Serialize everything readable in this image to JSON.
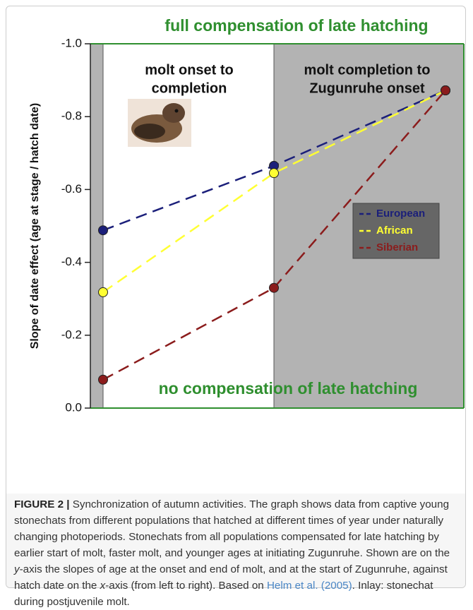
{
  "chart_data": {
    "type": "line",
    "ylabel": "Slope of date effect (age at stage / hatch date)",
    "top_note": "full compensation of late hatching",
    "bottom_note": "no compensation of late hatching",
    "regions": [
      [
        "molt onset to",
        "completion"
      ],
      [
        "molt completion to",
        "Zugunruhe onset"
      ]
    ],
    "categories": [
      null,
      null,
      null
    ],
    "series": [
      {
        "name": "European",
        "color": "#1b1f7a",
        "values": [
          -0.488,
          -0.665,
          -0.872
        ]
      },
      {
        "name": "African",
        "color": "#ffff33",
        "values": [
          -0.318,
          -0.645,
          -0.872
        ]
      },
      {
        "name": "Siberian",
        "color": "#8b1c1c",
        "values": [
          -0.078,
          -0.33,
          -0.872
        ]
      }
    ],
    "ylim": [
      0,
      -1.0
    ],
    "yticks": [
      {
        "value": 0,
        "label": "0.0"
      },
      -0.2,
      -0.4,
      -0.6,
      -0.8,
      {
        "value": -1,
        "label": "-1.0"
      }
    ],
    "legend": "right"
  },
  "caption": {
    "label": "FIGURE 2 |",
    "parts": [
      "Synchronization of autumn activities. The graph shows data from captive young stonechats from different populations that hatched at different times of year under naturally changing photoperiods. Stonechats from all populations compensated for late hatching by earlier start of molt, faster molt, and younger ages at initiating Zugunruhe. Shown are on the ",
      "y",
      "-axis the slopes of age at the onset and end of molt, and at the start of Zugunruhe, against hatch date on the ",
      "x",
      "-axis (from left to right). Based on ",
      "Helm et al. (2005)",
      ". Inlay: stonechat during postjuvenile molt."
    ]
  }
}
